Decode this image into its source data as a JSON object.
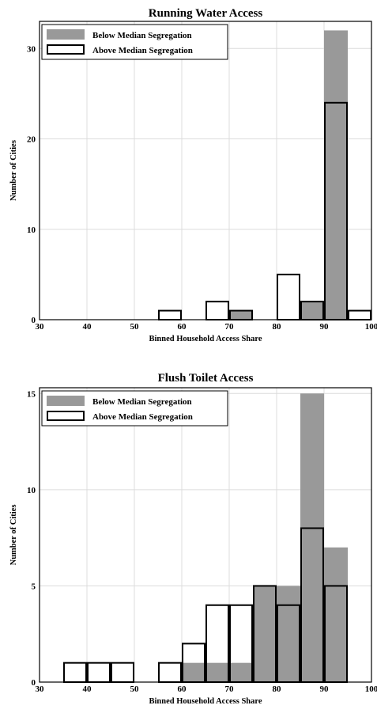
{
  "chart_data": [
    {
      "type": "bar",
      "title": "Running Water Access",
      "xlabel": "Binned Household Access Share",
      "ylabel": "Number of Cities",
      "xlim": [
        30,
        100
      ],
      "ylim": [
        0,
        33
      ],
      "xticks": [
        30,
        40,
        50,
        60,
        70,
        80,
        90,
        100
      ],
      "yticks": [
        0,
        10,
        20,
        30
      ],
      "bin_width": 5,
      "grid": true,
      "legend_position": "top-left",
      "series": [
        {
          "name": "Below Median Segregation",
          "color": "#999999",
          "bins": [
            {
              "x": 70,
              "count": 1
            },
            {
              "x": 85,
              "count": 2
            },
            {
              "x": 90,
              "count": 32
            }
          ]
        },
        {
          "name": "Above Median Segregation",
          "color": "#ffffff",
          "bins": [
            {
              "x": 55,
              "count": 1
            },
            {
              "x": 65,
              "count": 2
            },
            {
              "x": 70,
              "count": 1
            },
            {
              "x": 80,
              "count": 5
            },
            {
              "x": 85,
              "count": 2
            },
            {
              "x": 90,
              "count": 24
            },
            {
              "x": 95,
              "count": 1
            }
          ]
        }
      ]
    },
    {
      "type": "bar",
      "title": "Flush Toilet Access",
      "xlabel": "Binned Household Access Share",
      "ylabel": "Number of Cities",
      "xlim": [
        30,
        100
      ],
      "ylim": [
        0,
        15.3
      ],
      "xticks": [
        30,
        40,
        50,
        60,
        70,
        80,
        90,
        100
      ],
      "yticks": [
        0,
        5,
        10,
        15
      ],
      "bin_width": 5,
      "grid": true,
      "legend_position": "top-left",
      "series": [
        {
          "name": "Below Median Segregation",
          "color": "#999999",
          "bins": [
            {
              "x": 60,
              "count": 1
            },
            {
              "x": 65,
              "count": 1
            },
            {
              "x": 70,
              "count": 1
            },
            {
              "x": 75,
              "count": 5
            },
            {
              "x": 80,
              "count": 5
            },
            {
              "x": 85,
              "count": 15
            },
            {
              "x": 90,
              "count": 7
            }
          ]
        },
        {
          "name": "Above Median Segregation",
          "color": "#ffffff",
          "bins": [
            {
              "x": 35,
              "count": 1
            },
            {
              "x": 40,
              "count": 1
            },
            {
              "x": 45,
              "count": 1
            },
            {
              "x": 55,
              "count": 1
            },
            {
              "x": 60,
              "count": 2
            },
            {
              "x": 65,
              "count": 4
            },
            {
              "x": 70,
              "count": 4
            },
            {
              "x": 75,
              "count": 5
            },
            {
              "x": 80,
              "count": 4
            },
            {
              "x": 85,
              "count": 8
            },
            {
              "x": 90,
              "count": 5
            }
          ]
        }
      ]
    }
  ]
}
